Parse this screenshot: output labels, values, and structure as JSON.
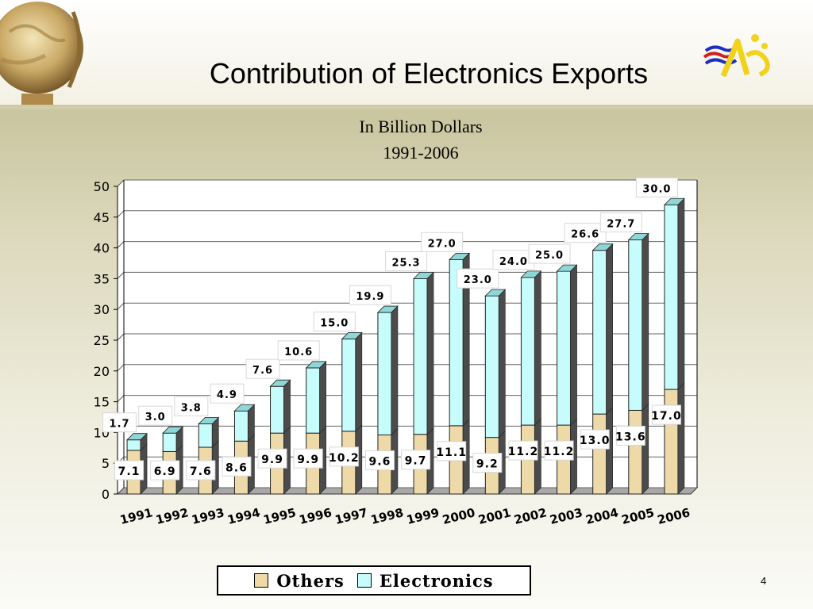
{
  "title": "Contribution of Electronics Exports",
  "subtitle_line1": "In Billion Dollars",
  "subtitle_line2": "1991-2006",
  "page_number": "4",
  "colors": {
    "others": "#eed9a8",
    "electronics": "#c7fcfc",
    "title_text": "#000000"
  },
  "icons": {
    "globe": "globe-icon",
    "logo": "company-logo-icon"
  },
  "chart_data": {
    "type": "bar",
    "stacked": true,
    "categories": [
      "1991",
      "1992",
      "1993",
      "1994",
      "1995",
      "1996",
      "1997",
      "1998",
      "1999",
      "2000",
      "2001",
      "2002",
      "2003",
      "2004",
      "2005",
      "2006"
    ],
    "series": [
      {
        "name": "Others",
        "values": [
          7.1,
          6.9,
          7.6,
          8.6,
          9.9,
          9.9,
          10.2,
          9.6,
          9.7,
          11.1,
          9.2,
          11.2,
          11.2,
          13.0,
          13.6,
          17.0
        ],
        "labels": [
          "7.1",
          "6.9",
          "7.6",
          "8.6",
          "9.9",
          "9.9",
          "10.2",
          "9.6",
          "9.7",
          "11.1",
          "9.2",
          "11.2",
          "11.2",
          "13.0",
          "13.6",
          "17.0"
        ]
      },
      {
        "name": "Electronics",
        "values": [
          1.7,
          3.0,
          3.8,
          4.9,
          7.6,
          10.6,
          15.0,
          19.9,
          25.3,
          27.0,
          23.0,
          24.0,
          25.0,
          26.6,
          27.7,
          30.0
        ],
        "labels": [
          "1.7",
          "3.0",
          "3.8",
          "4.9",
          "7.6",
          "10.6",
          "15.0",
          "19.9",
          "25.3",
          "27.0",
          "23.0",
          "24.0",
          "25.0",
          "26.6",
          "27.7",
          "30.0"
        ]
      }
    ],
    "ylim": [
      0,
      50
    ],
    "yticks": [
      "0",
      "5",
      "10",
      "15",
      "20",
      "25",
      "30",
      "35",
      "40",
      "45",
      "50"
    ],
    "grid": true,
    "legend": "bottom"
  }
}
